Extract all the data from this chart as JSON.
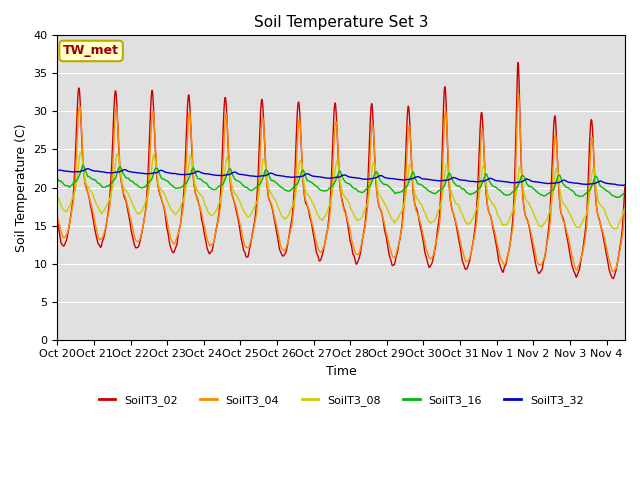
{
  "title": "Soil Temperature Set 3",
  "xlabel": "Time",
  "ylabel": "Soil Temperature (C)",
  "ylim": [
    0,
    40
  ],
  "bg_color": "#e0e0e0",
  "annotation_text": "TW_met",
  "annotation_bg": "#ffffcc",
  "annotation_border": "#bbaa00",
  "series": [
    "SoilT3_02",
    "SoilT3_04",
    "SoilT3_08",
    "SoilT3_16",
    "SoilT3_32"
  ],
  "colors": [
    "#cc0000",
    "#ff8800",
    "#cccc00",
    "#00bb00",
    "#0000cc"
  ],
  "num_days": 15.5,
  "samples_per_day": 144,
  "xtick_labels": [
    "Oct 20",
    "Oct 21",
    "Oct 22",
    "Oct 23",
    "Oct 24",
    "Oct 25",
    "Oct 26",
    "Oct 27",
    "Oct 28",
    "Oct 29",
    "Oct 30",
    "Oct 31",
    "Nov 1",
    "Nov 2",
    "Nov 3",
    "Nov 4"
  ],
  "grid_color": "#ffffff",
  "linewidth": 1.0
}
